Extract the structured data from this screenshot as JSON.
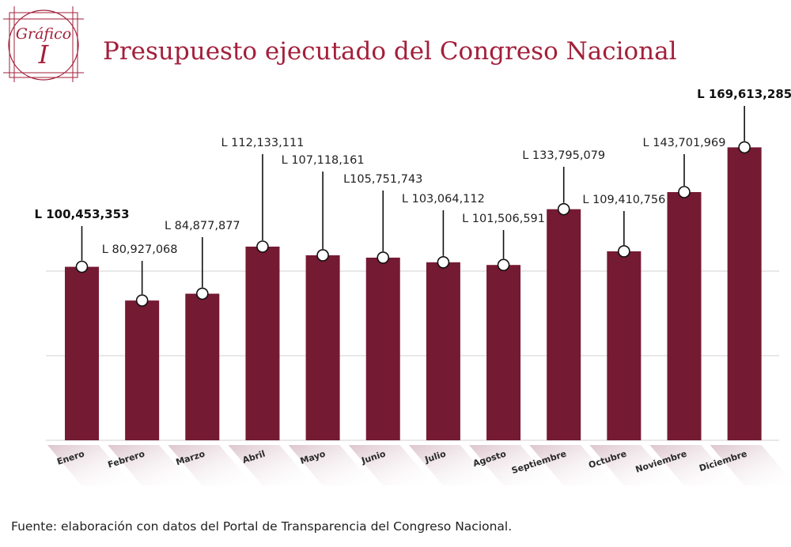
{
  "badge": {
    "word": "Gráfico",
    "numeral": "I"
  },
  "colors": {
    "accent": "#a31f3a",
    "bar": "#751a33",
    "grid": "#d9d9d9"
  },
  "source": "Fuente: elaboración con datos del Portal de Transparencia del Congreso Nacional.",
  "chart_data": {
    "type": "bar",
    "title": "Presupuesto ejecutado del Congreso Nacional",
    "xlabel": "",
    "ylabel": "",
    "ylim": [
      0,
      180000000
    ],
    "grid": true,
    "legend": "none",
    "categories": [
      "Enero",
      "Febrero",
      "Marzo",
      "Abril",
      "Mayo",
      "Junio",
      "Julio",
      "Agosto",
      "Septiembre",
      "Octubre",
      "Noviembre",
      "Diciembre"
    ],
    "values": [
      100453353,
      80927068,
      84877877,
      112133111,
      107118161,
      105751743,
      103064112,
      101506591,
      133795079,
      109410756,
      143701969,
      169613285
    ],
    "data_labels": [
      "L 100,453,353",
      "L 80,927,068",
      "L 84,877,877",
      "L 112,133,111",
      "L 107,118,161",
      "L105,751,743",
      "L 103,064,112",
      "L 101,506,591",
      "L 133,795,079",
      "L 109,410,756",
      "L 143,701,969",
      "L 169,613,285"
    ],
    "bold_labels": [
      true,
      false,
      false,
      false,
      false,
      false,
      false,
      false,
      false,
      false,
      false,
      true
    ]
  }
}
